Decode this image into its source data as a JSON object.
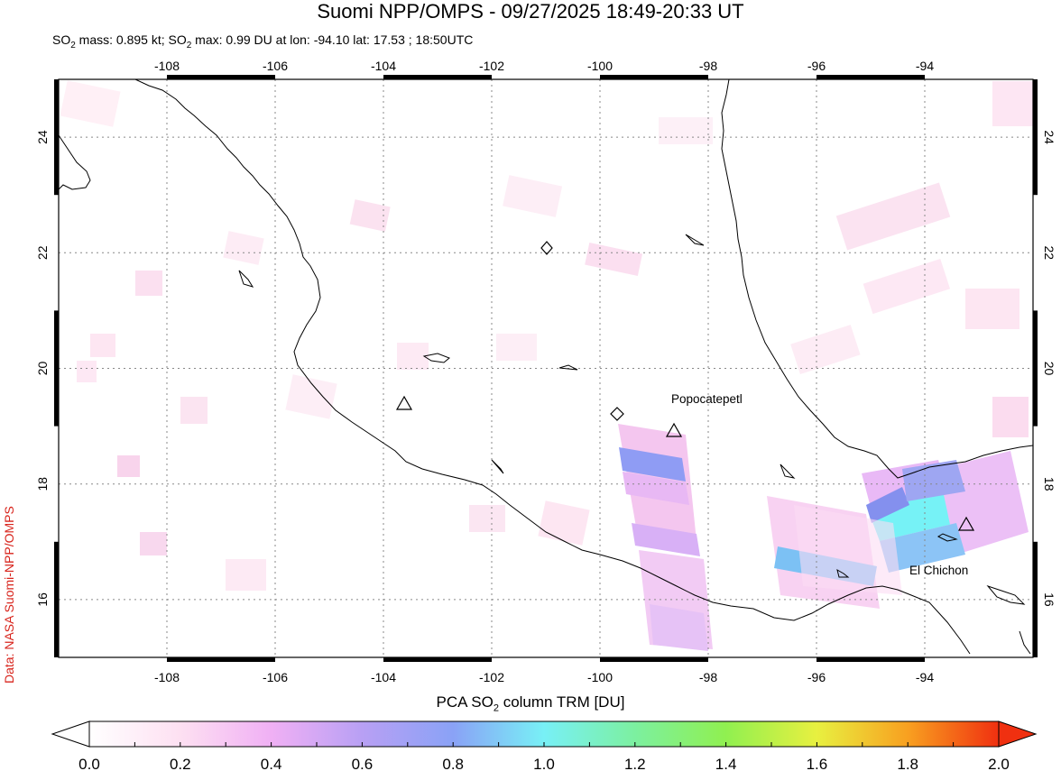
{
  "header": {
    "title": "Suomi NPP/OMPS - 09/27/2025 18:49-20:33 UT",
    "subtitle_parts": [
      "SO",
      "2",
      " mass: 0.895 kt; SO",
      "2",
      " max: 0.99 DU at lon: -94.10 lat: 17.53 ; 18:50UTC"
    ]
  },
  "credit": "Data: NASA Suomi-NPP/OMPS",
  "map": {
    "lon_range": [
      -110,
      -92
    ],
    "lat_range": [
      15,
      25
    ],
    "lon_ticks": [
      "-108",
      "-106",
      "-104",
      "-102",
      "-100",
      "-98",
      "-96",
      "-94"
    ],
    "lat_ticks": [
      "16",
      "18",
      "20",
      "22",
      "24"
    ],
    "volcano_labels": [
      {
        "name": "Popocatepetl"
      },
      {
        "name": "El Chichon"
      }
    ],
    "colors": {
      "coast": "#000000",
      "grid": "#888888",
      "frame": "#000000"
    }
  },
  "colorbar": {
    "title_parts": [
      "PCA SO",
      "2",
      " column TRM [DU]"
    ],
    "tick_labels": [
      "0.0",
      "0.2",
      "0.4",
      "0.6",
      "0.8",
      "1.0",
      "1.2",
      "1.4",
      "1.6",
      "1.8",
      "2.0"
    ],
    "range": [
      0,
      2
    ]
  }
}
